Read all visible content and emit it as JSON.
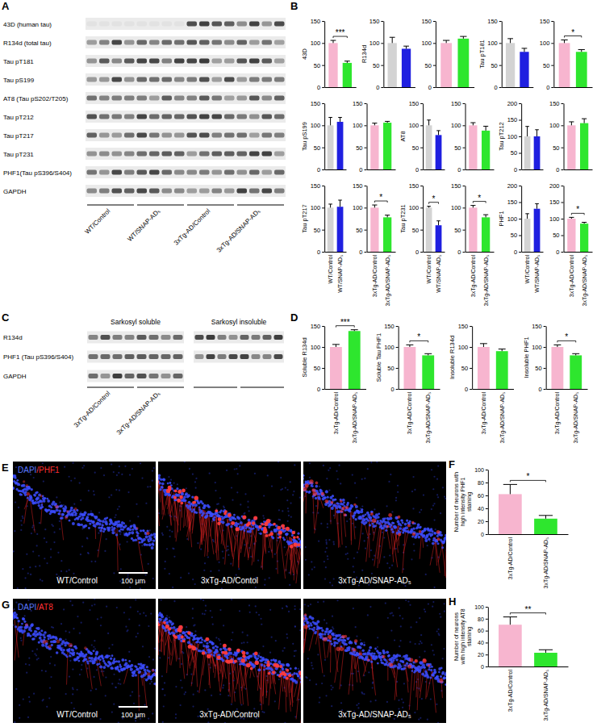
{
  "panel_letters": [
    "A",
    "B",
    "C",
    "D",
    "E",
    "F",
    "G",
    "H"
  ],
  "blot_A": {
    "rows": [
      "43D (human tau)",
      "R134d (total tau)",
      "Tau pT181",
      "Tau pS199",
      "AT8 (Tau pS202/T205)",
      "Tau pT212",
      "Tau pT217",
      "Tau pT231",
      "PHF1(Tau pS396/S404)",
      "GAPDH"
    ],
    "groups": [
      "WT/Control",
      "WT/SNAP-AD₅",
      "3xTg-AD/Control",
      "3xTg-AD/SNAP-AD₅"
    ]
  },
  "blot_C": {
    "columns": [
      "Sarkosyl soluble",
      "Sarkosyl insoluble"
    ],
    "rows": [
      "R134d",
      "PHF1 (Tau pS396/S404)",
      "GAPDH"
    ],
    "groups": [
      "3xTg-AD/Control",
      "3xTg-AD/SNAP-AD₅"
    ]
  },
  "images_E": {
    "stain_parts": [
      "DAPI",
      "/PHF1"
    ],
    "panels": [
      "WT/Control",
      "3xTg-AD/Contol",
      "3xTg-AD/SNAP-AD₅"
    ],
    "scale_bar": "100 μm"
  },
  "images_G": {
    "stain_parts": [
      "DAPI",
      "/AT8"
    ],
    "panels": [
      "WT/Control",
      "3xTg-AD/Control",
      "3xTg-AD/SNAP-AD₅"
    ],
    "scale_bar": "100 μm"
  },
  "chart_data": [
    {
      "type": "bar",
      "y_label": "43D",
      "categories": [
        null,
        null
      ],
      "values": [
        100,
        55
      ],
      "errors": [
        6,
        4
      ],
      "colors": [
        "#f7b5cf",
        "#2ee62e"
      ],
      "ylim": [
        0,
        150
      ],
      "yticks": [
        0,
        50,
        100,
        150
      ],
      "annotations": [
        "***"
      ]
    },
    {
      "type": "bar",
      "y_label": "R134d",
      "categories": [
        null,
        null
      ],
      "values": [
        100,
        87
      ],
      "errors": [
        13,
        6
      ],
      "colors": [
        "#d3d3d3",
        "#1f1fe0"
      ],
      "ylim": [
        0,
        150
      ],
      "yticks": [
        0,
        50,
        100,
        150
      ]
    },
    {
      "type": "bar",
      "categories": [
        null,
        null
      ],
      "values": [
        100,
        110
      ],
      "errors": [
        6,
        5
      ],
      "colors": [
        "#f7b5cf",
        "#2ee62e"
      ],
      "ylim": [
        0,
        150
      ],
      "yticks": [
        0,
        50,
        100,
        150
      ]
    },
    {
      "type": "bar",
      "y_label": "Tau pT181",
      "categories": [
        null,
        null
      ],
      "values": [
        100,
        80
      ],
      "errors": [
        10,
        8
      ],
      "colors": [
        "#d3d3d3",
        "#1f1fe0"
      ],
      "ylim": [
        0,
        150
      ],
      "yticks": [
        0,
        50,
        100,
        150
      ]
    },
    {
      "type": "bar",
      "categories": [
        null,
        null
      ],
      "values": [
        100,
        80
      ],
      "errors": [
        7,
        5
      ],
      "colors": [
        "#f7b5cf",
        "#2ee62e"
      ],
      "ylim": [
        0,
        150
      ],
      "yticks": [
        0,
        50,
        100,
        150
      ],
      "annotations": [
        "*"
      ]
    },
    {
      "type": "bar",
      "y_label": "Tau pS199",
      "categories": [
        null,
        null
      ],
      "values": [
        100,
        108
      ],
      "errors": [
        18,
        10
      ],
      "colors": [
        "#d3d3d3",
        "#1f1fe0"
      ],
      "ylim": [
        0,
        150
      ],
      "yticks": [
        0,
        50,
        100,
        150
      ]
    },
    {
      "type": "bar",
      "categories": [
        null,
        null
      ],
      "values": [
        100,
        106
      ],
      "errors": [
        5,
        3
      ],
      "colors": [
        "#f7b5cf",
        "#2ee62e"
      ],
      "ylim": [
        0,
        150
      ],
      "yticks": [
        0,
        50,
        100,
        150
      ]
    },
    {
      "type": "bar",
      "y_label": "AT8",
      "categories": [
        null,
        null
      ],
      "values": [
        100,
        78
      ],
      "errors": [
        12,
        10
      ],
      "colors": [
        "#d3d3d3",
        "#1f1fe0"
      ],
      "ylim": [
        0,
        150
      ],
      "yticks": [
        0,
        50,
        100,
        150
      ]
    },
    {
      "type": "bar",
      "categories": [
        null,
        null
      ],
      "values": [
        100,
        88
      ],
      "errors": [
        6,
        10
      ],
      "colors": [
        "#f7b5cf",
        "#2ee62e"
      ],
      "ylim": [
        0,
        150
      ],
      "yticks": [
        0,
        50,
        100,
        150
      ]
    },
    {
      "type": "bar",
      "y_label": "Tau pT212",
      "categories": [
        null,
        null
      ],
      "values": [
        100,
        100
      ],
      "errors": [
        30,
        20
      ],
      "colors": [
        "#d3d3d3",
        "#1f1fe0"
      ],
      "ylim": [
        0,
        200
      ],
      "yticks": [
        0,
        50,
        100,
        150,
        200
      ]
    },
    {
      "type": "bar",
      "categories": [
        null,
        null
      ],
      "values": [
        100,
        105
      ],
      "errors": [
        8,
        10
      ],
      "colors": [
        "#f7b5cf",
        "#2ee62e"
      ],
      "ylim": [
        0,
        150
      ],
      "yticks": [
        0,
        50,
        100,
        150
      ]
    },
    {
      "type": "bar",
      "y_label": "Tau pT217",
      "categories": [
        "WT/Control",
        "WT/SNAP-AD₅"
      ],
      "values": [
        100,
        102
      ],
      "errors": [
        8,
        15
      ],
      "colors": [
        "#d3d3d3",
        "#1f1fe0"
      ],
      "ylim": [
        0,
        150
      ],
      "yticks": [
        0,
        50,
        100,
        150
      ]
    },
    {
      "type": "bar",
      "categories": [
        "3xTg-AD/Control",
        "3xTg-AD/SNAP-AD₅"
      ],
      "values": [
        100,
        78
      ],
      "errors": [
        6,
        5
      ],
      "colors": [
        "#f7b5cf",
        "#2ee62e"
      ],
      "ylim": [
        0,
        150
      ],
      "yticks": [
        0,
        50,
        100,
        150
      ],
      "annotations": [
        "*"
      ]
    },
    {
      "type": "bar",
      "y_label": "Tau pT231",
      "categories": [
        "WT/Control",
        "WT/SNAP-AD₅"
      ],
      "values": [
        100,
        60
      ],
      "errors": [
        3,
        10
      ],
      "colors": [
        "#d3d3d3",
        "#1f1fe0"
      ],
      "ylim": [
        0,
        150
      ],
      "yticks": [
        0,
        50,
        100,
        150
      ],
      "annotations": [
        "*"
      ]
    },
    {
      "type": "bar",
      "categories": [
        "3xTg-AD/Control",
        "3xTg-AD/SNAP-AD₅"
      ],
      "values": [
        100,
        78
      ],
      "errors": [
        5,
        6
      ],
      "colors": [
        "#f7b5cf",
        "#2ee62e"
      ],
      "ylim": [
        0,
        150
      ],
      "yticks": [
        0,
        50,
        100,
        150
      ],
      "annotations": [
        "*"
      ]
    },
    {
      "type": "bar",
      "y_label": "PHF1",
      "categories": [
        "WT/Control",
        "WT/SNAP-AD₅"
      ],
      "values": [
        100,
        130
      ],
      "errors": [
        15,
        15
      ],
      "colors": [
        "#d3d3d3",
        "#1f1fe0"
      ],
      "ylim": [
        0,
        200
      ],
      "yticks": [
        0,
        50,
        100,
        150,
        200
      ]
    },
    {
      "type": "bar",
      "categories": [
        "3xTg-AD/Control",
        "3xTg-AD/SNAP-AD₅"
      ],
      "values": [
        100,
        85
      ],
      "errors": [
        4,
        4
      ],
      "colors": [
        "#f7b5cf",
        "#2ee62e"
      ],
      "ylim": [
        0,
        200
      ],
      "yticks": [
        0,
        50,
        100,
        150,
        200
      ],
      "annotations": [
        "*"
      ]
    },
    {
      "type": "bar",
      "y_label": "Soluble R134d",
      "categories": [
        "3xTg-AD/Control",
        "3xTg-AD/SNAP-AD₅"
      ],
      "values": [
        100,
        138
      ],
      "errors": [
        6,
        3
      ],
      "colors": [
        "#f7b5cf",
        "#2ee62e"
      ],
      "ylim": [
        0,
        150
      ],
      "yticks": [
        0,
        50,
        100,
        150
      ],
      "annotations": [
        "***"
      ]
    },
    {
      "type": "bar",
      "y_label": "Soluble Tau PHF1",
      "categories": [
        "3xTg-AD/Control",
        "3xTg-AD/SNAP-AD₅"
      ],
      "values": [
        100,
        80
      ],
      "errors": [
        5,
        4
      ],
      "colors": [
        "#f7b5cf",
        "#2ee62e"
      ],
      "ylim": [
        0,
        150
      ],
      "yticks": [
        0,
        50,
        100,
        150
      ],
      "annotations": [
        "*"
      ]
    },
    {
      "type": "bar",
      "y_label": "Insoluble R134d",
      "categories": [
        "3xTg-AD/Control",
        "3xTg-AD/SNAP-AD₅"
      ],
      "values": [
        100,
        90
      ],
      "errors": [
        8,
        5
      ],
      "colors": [
        "#f7b5cf",
        "#2ee62e"
      ],
      "ylim": [
        0,
        150
      ],
      "yticks": [
        0,
        50,
        100,
        150
      ]
    },
    {
      "type": "bar",
      "y_label": "Insoluble PHF1",
      "categories": [
        "3xTg-AD/Control",
        "3xTg-AD/SNAP-AD₅"
      ],
      "values": [
        100,
        80
      ],
      "errors": [
        5,
        4
      ],
      "colors": [
        "#f7b5cf",
        "#2ee62e"
      ],
      "ylim": [
        0,
        150
      ],
      "yticks": [
        0,
        50,
        100,
        150
      ],
      "annotations": [
        "*"
      ]
    },
    {
      "type": "bar",
      "y_label": "Number of neurons with high intensity PHF1 staining",
      "categories": [
        "3xTg-AD/Control",
        "3xTg-AD/SNAP-AD₅"
      ],
      "values": [
        62,
        24
      ],
      "errors": [
        15,
        5
      ],
      "colors": [
        "#f7b5cf",
        "#2ee62e"
      ],
      "ylim": [
        0,
        100
      ],
      "yticks": [
        0,
        20,
        40,
        60,
        80,
        100
      ],
      "annotations": [
        "*"
      ]
    },
    {
      "type": "bar",
      "y_label": "Number of neurons with high intensity AT8 staining",
      "categories": [
        "3xTg-AD/Control",
        "3xTg-AD/SNAP-AD₅"
      ],
      "values": [
        70,
        23
      ],
      "errors": [
        13,
        5
      ],
      "colors": [
        "#f7b5cf",
        "#2ee62e"
      ],
      "ylim": [
        0,
        100
      ],
      "yticks": [
        0,
        20,
        40,
        60,
        80,
        100
      ],
      "annotations": [
        "**"
      ]
    }
  ]
}
